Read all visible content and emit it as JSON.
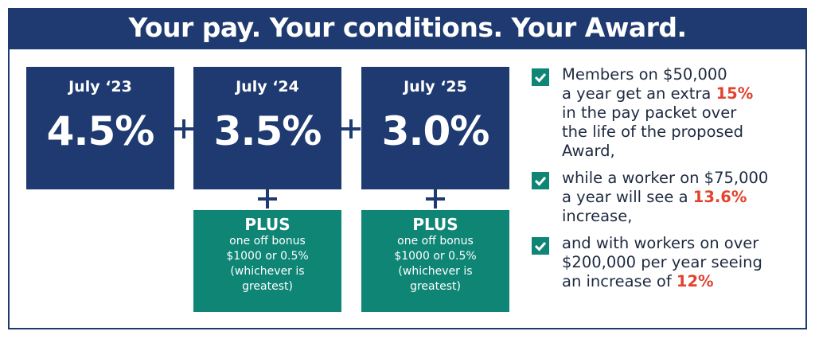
{
  "header": {
    "title": "Your pay. Your conditions. Your Award."
  },
  "increases": [
    {
      "date": "July ‘23",
      "rate": "4.5%"
    },
    {
      "date": "July ‘24",
      "rate": "3.5%"
    },
    {
      "date": "July ‘25",
      "rate": "3.0%"
    }
  ],
  "bonuses": [
    {
      "heading": "PLUS",
      "lines": [
        "one off bonus",
        "$1000 or 0.5%",
        "(whichever is",
        "greatest)"
      ]
    },
    {
      "heading": "PLUS",
      "lines": [
        "one off bonus",
        "$1000 or 0.5%",
        "(whichever is",
        "greatest)"
      ]
    }
  ],
  "checklist": [
    {
      "lines": [
        [
          {
            "text": "Members on $50,000"
          }
        ],
        [
          {
            "text": "a year get an extra "
          },
          {
            "text": "15%",
            "emphasis": true
          }
        ],
        [
          {
            "text": "in the pay packet over"
          }
        ],
        [
          {
            "text": "the life of the proposed"
          }
        ],
        [
          {
            "text": "Award,"
          }
        ]
      ]
    },
    {
      "lines": [
        [
          {
            "text": "while a worker on $75,000"
          }
        ],
        [
          {
            "text": "a year will see a "
          },
          {
            "text": "13.6%",
            "emphasis": true
          }
        ],
        [
          {
            "text": "increase,"
          }
        ]
      ]
    },
    {
      "lines": [
        [
          {
            "text": "and with workers on over"
          }
        ],
        [
          {
            "text": "$200,000 per year seeing"
          }
        ],
        [
          {
            "text": "an increase of "
          },
          {
            "text": "12%",
            "emphasis": true
          }
        ]
      ]
    }
  ]
}
